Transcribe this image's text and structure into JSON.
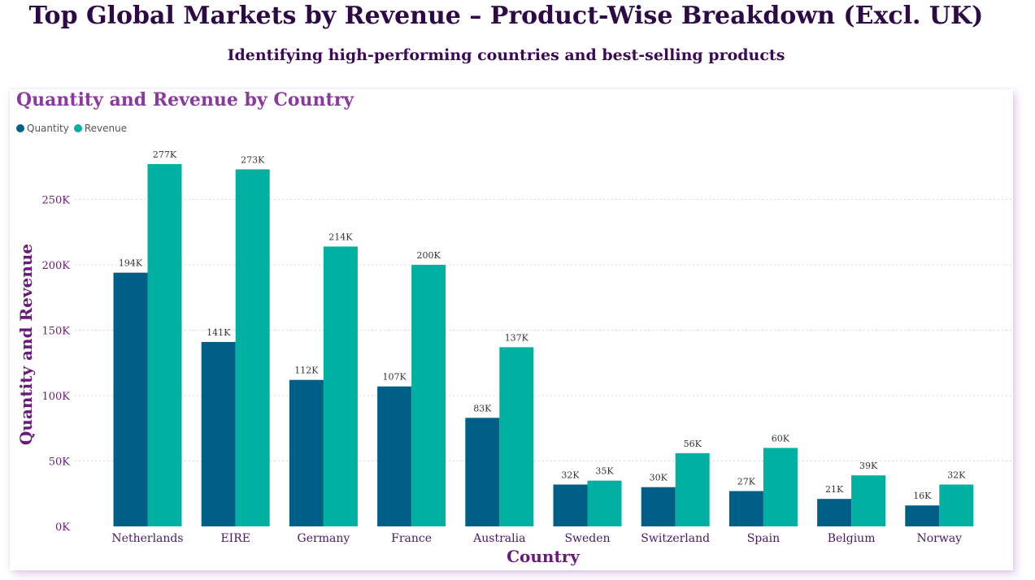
{
  "header": {
    "title": "Top Global Markets by Revenue – Product-Wise Breakdown (Excl. UK)",
    "subtitle": "Identifying high-performing countries and best-selling products"
  },
  "card": {
    "title": "Quantity and Revenue by Country"
  },
  "colors": {
    "quantity": "#005f87",
    "revenue": "#00b0a0"
  },
  "chart_data": {
    "type": "bar",
    "title": "Quantity and Revenue by Country",
    "xlabel": "Country",
    "ylabel": "Quantity and Revenue",
    "ylim": [
      0,
      300000
    ],
    "yticks": [
      0,
      50000,
      100000,
      150000,
      200000,
      250000
    ],
    "ytick_labels": [
      "0K",
      "50K",
      "100K",
      "150K",
      "200K",
      "250K"
    ],
    "grid": true,
    "legend_position": "top-left",
    "categories": [
      "Netherlands",
      "EIRE",
      "Germany",
      "France",
      "Australia",
      "Sweden",
      "Switzerland",
      "Spain",
      "Belgium",
      "Norway"
    ],
    "series": [
      {
        "name": "Quantity",
        "values": [
          194000,
          141000,
          112000,
          107000,
          83000,
          32000,
          30000,
          27000,
          21000,
          16000
        ],
        "labels": [
          "194K",
          "141K",
          "112K",
          "107K",
          "83K",
          "32K",
          "30K",
          "27K",
          "21K",
          "16K"
        ]
      },
      {
        "name": "Revenue",
        "values": [
          277000,
          273000,
          214000,
          200000,
          137000,
          35000,
          56000,
          60000,
          39000,
          32000
        ],
        "labels": [
          "277K",
          "273K",
          "214K",
          "200K",
          "137K",
          "35K",
          "56K",
          "60K",
          "39K",
          "32K"
        ]
      }
    ]
  }
}
